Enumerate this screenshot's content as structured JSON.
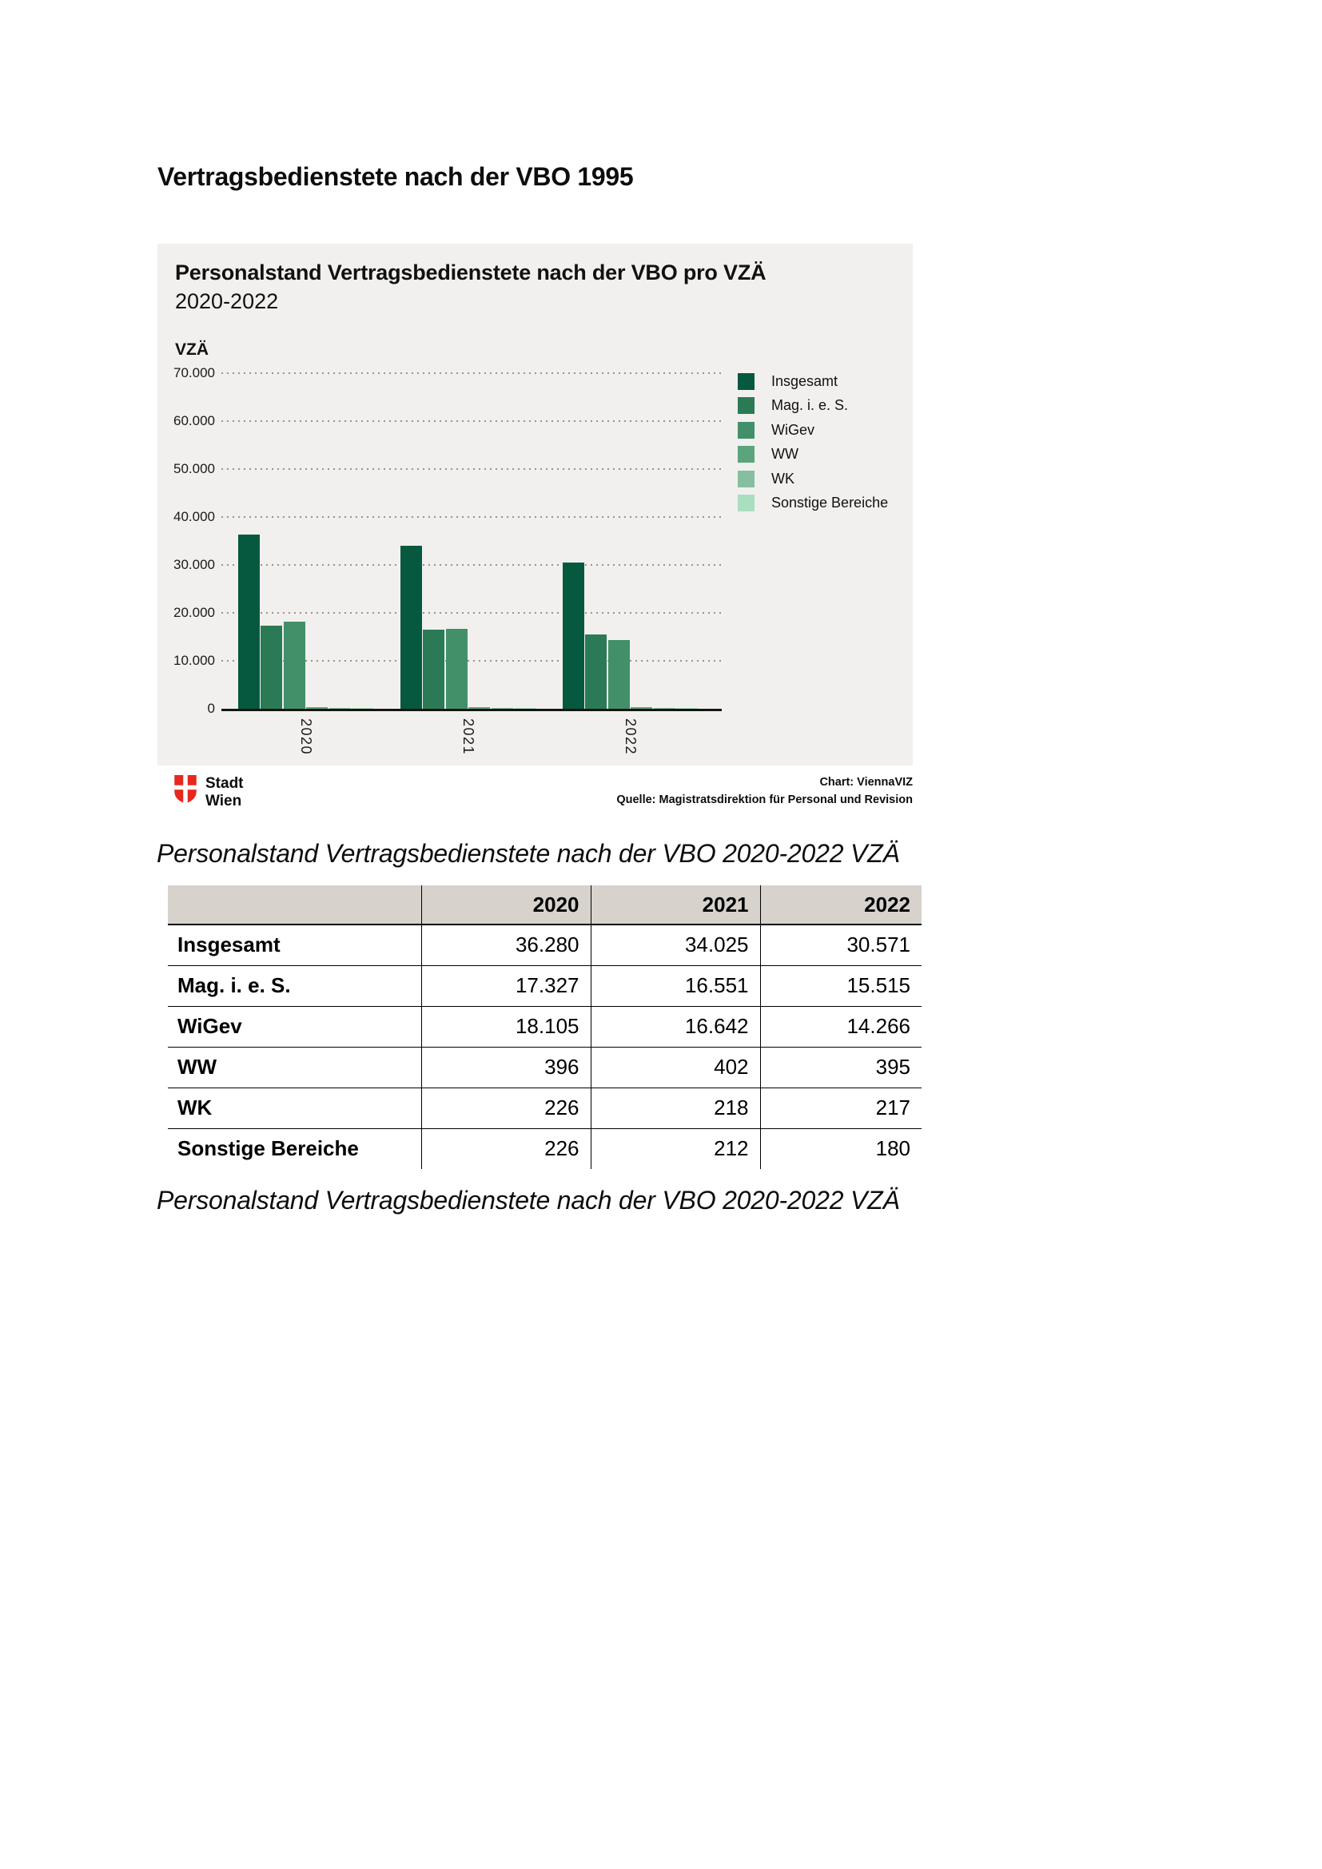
{
  "page": {
    "title": "Vertragsbedienstete nach der VBO 1995"
  },
  "chart": {
    "title": "Personalstand Vertragsbedienstete nach der VBO pro VZÄ",
    "subtitle": "2020-2022",
    "y_axis_label": "VZÄ"
  },
  "chart_data": {
    "type": "bar",
    "categories": [
      "2020",
      "2021",
      "2022"
    ],
    "series": [
      {
        "name": "Insgesamt",
        "color": "#06593e",
        "values": [
          36280,
          34025,
          30571
        ]
      },
      {
        "name": "Mag. i. e. S.",
        "color": "#2b7a56",
        "values": [
          17327,
          16551,
          15515
        ]
      },
      {
        "name": "WiGev",
        "color": "#41906a",
        "values": [
          18105,
          16642,
          14266
        ]
      },
      {
        "name": "WW",
        "color": "#5aa57c",
        "values": [
          396,
          402,
          395
        ]
      },
      {
        "name": "WK",
        "color": "#85bf9f",
        "values": [
          226,
          218,
          217
        ]
      },
      {
        "name": "Sonstige Bereiche",
        "color": "#aadec0",
        "values": [
          226,
          212,
          180
        ]
      }
    ],
    "title": "Personalstand Vertragsbedienstete nach der VBO pro VZÄ 2020-2022",
    "xlabel": "",
    "ylabel": "VZÄ",
    "ylim": [
      0,
      70000
    ],
    "ytick_step": 10000,
    "ytick_labels": [
      "0",
      "10.000",
      "20.000",
      "30.000",
      "40.000",
      "50.000",
      "60.000",
      "70.000"
    ],
    "grid": "dotted horizontal gridlines, solid x baseline",
    "legend_position": "right"
  },
  "footer": {
    "logo_line1": "Stadt",
    "logo_line2": "Wien",
    "credit_chart": "Chart: ViennaVIZ",
    "credit_source": "Quelle: Magistratsdirektion für Personal und Revision"
  },
  "captions": {
    "top": "Personalstand Vertragsbedienstete nach der VBO 2020-2022 VZÄ",
    "bottom": "Personalstand Vertragsbedienstete nach der VBO 2020-2022 VZÄ"
  },
  "table": {
    "columns": [
      "",
      "2020",
      "2021",
      "2022"
    ],
    "rows": [
      {
        "label": "Insgesamt",
        "values": [
          "36.280",
          "34.025",
          "30.571"
        ]
      },
      {
        "label": "Mag. i. e. S.",
        "values": [
          "17.327",
          "16.551",
          "15.515"
        ]
      },
      {
        "label": "WiGev",
        "values": [
          "18.105",
          "16.642",
          "14.266"
        ]
      },
      {
        "label": "WW",
        "values": [
          "396",
          "402",
          "395"
        ]
      },
      {
        "label": "WK",
        "values": [
          "226",
          "218",
          "217"
        ]
      },
      {
        "label": "Sonstige Bereiche",
        "values": [
          "226",
          "212",
          "180"
        ]
      }
    ]
  },
  "colors": {
    "panel_bg": "#f1f0ee",
    "table_header_bg": "#d7d3cc",
    "logo_red": "#e8271e",
    "gridline_gray": "#96938d"
  }
}
